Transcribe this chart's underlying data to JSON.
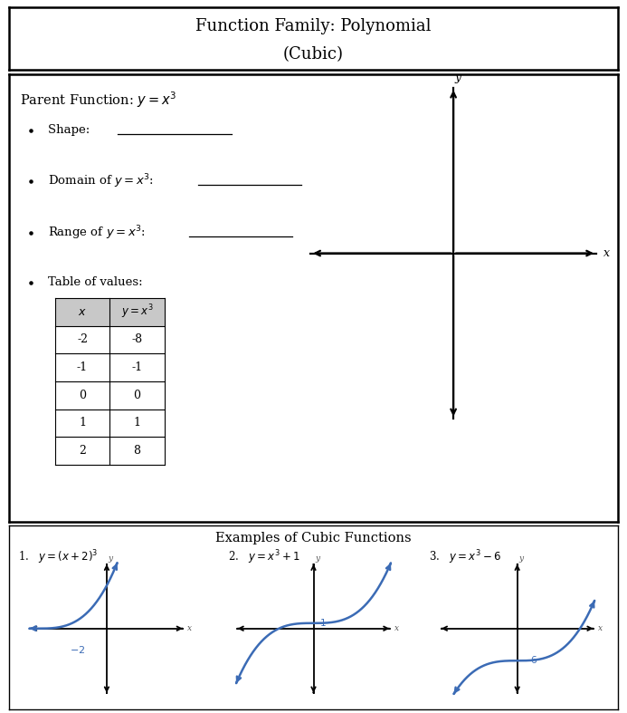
{
  "title_line1": "Function Family: Polynomial",
  "title_line2": "(Cubic)",
  "parent_label": "Parent Function: $y = x^3$",
  "bullet1_text": "Shape: ",
  "bullet1_line": [
    0.195,
    0.365
  ],
  "bullet2_text": "Domain of $y = x^3$: ",
  "bullet2_line": [
    0.335,
    0.495
  ],
  "bullet3_text": "Range of $y = x^3$: ",
  "bullet3_line": [
    0.31,
    0.47
  ],
  "bullet4_text": "Table of values:",
  "table_headers": [
    "x",
    "y = x³"
  ],
  "table_x": [
    "-2",
    "-1",
    "0",
    "1",
    "2"
  ],
  "table_y": [
    "-8",
    "-1",
    "0",
    "1",
    "8"
  ],
  "examples_title": "Examples of Cubic Functions",
  "ex1_label": "1.   $y = (x + 2)^3$",
  "ex2_label": "2.   $y = x^3 + 1$",
  "ex3_label": "3.   $y = x^3 - 6$",
  "curve_color": "#3B6BB5",
  "bg_color": "#ffffff",
  "line_color": "#000000",
  "header_bg": "#ffffff",
  "table_header_bg": "#c8c8c8"
}
